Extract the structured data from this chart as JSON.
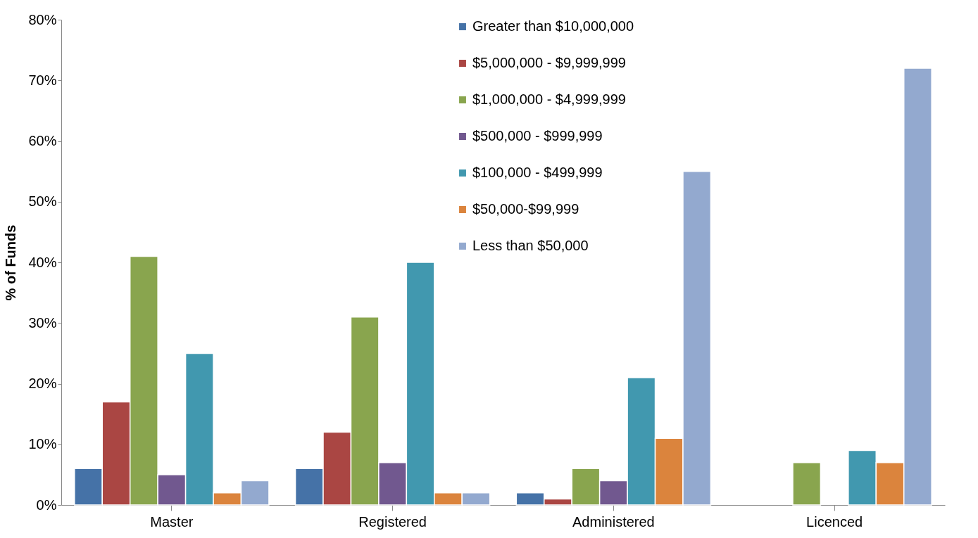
{
  "chart_data": {
    "type": "bar",
    "ylabel": "% of Funds",
    "categories": [
      "Master",
      "Registered",
      "Administered",
      "Licenced"
    ],
    "series": [
      {
        "name": "Greater than $10,000,000",
        "color": "#4572a7",
        "values": [
          6,
          6,
          2,
          null
        ]
      },
      {
        "name": "$5,000,000 - $9,999,999",
        "color": "#aa4643",
        "values": [
          17,
          12,
          1,
          null
        ]
      },
      {
        "name": "$1,000,000 - $4,999,999",
        "color": "#89a54e",
        "values": [
          41,
          31,
          6,
          7
        ]
      },
      {
        "name": "$500,000 - $999,999",
        "color": "#71588f",
        "values": [
          5,
          7,
          4,
          null
        ]
      },
      {
        "name": "$100,000 - $499,999",
        "color": "#4198af",
        "values": [
          25,
          40,
          21,
          9
        ]
      },
      {
        "name": "$50,000-$99,999",
        "color": "#db843d",
        "values": [
          2,
          2,
          11,
          7
        ]
      },
      {
        "name": "Less than $50,000",
        "color": "#93a9cf",
        "values": [
          4,
          2,
          55,
          72
        ]
      }
    ],
    "ylim": [
      0,
      80
    ],
    "yticks": [
      {
        "value": 0,
        "label": "0%"
      },
      {
        "value": 10,
        "label": "10%"
      },
      {
        "value": 20,
        "label": "20%"
      },
      {
        "value": 30,
        "label": "30%"
      },
      {
        "value": 40,
        "label": "40%"
      },
      {
        "value": 50,
        "label": "50%"
      },
      {
        "value": 60,
        "label": "60%"
      },
      {
        "value": 70,
        "label": "70%"
      },
      {
        "value": 80,
        "label": "80%"
      }
    ],
    "grid": false,
    "legend": "top"
  }
}
